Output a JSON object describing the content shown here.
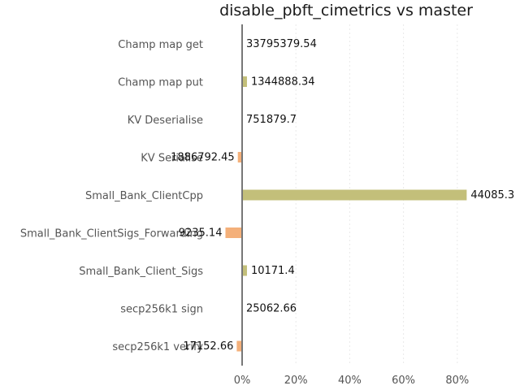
{
  "chart_data": {
    "type": "bar",
    "orientation": "horizontal",
    "title": "disable_pbft_cimetrics vs master",
    "xlabel": "",
    "ylabel": "",
    "xlim": [
      -0.1,
      1.0
    ],
    "xticks": [
      {
        "value": 0.0,
        "label": "0%"
      },
      {
        "value": 0.2,
        "label": "20%"
      },
      {
        "value": 0.4,
        "label": "40%"
      },
      {
        "value": 0.6,
        "label": "60%"
      },
      {
        "value": 0.8,
        "label": "80%"
      }
    ],
    "grid": true,
    "colors": {
      "positive": "#c3bf7a",
      "negative": "#f4b07a"
    },
    "categories": [
      "Champ map get",
      "Champ map put",
      "KV Deserialise",
      "KV Serialise",
      "Small_Bank_ClientCpp",
      "Small_Bank_ClientSigs_Forwarding",
      "Small_Bank_Client_Sigs",
      "secp256k1 sign",
      "secp256k1 verify"
    ],
    "values": [
      0.0,
      0.018,
      0.0,
      -0.016,
      0.835,
      -0.062,
      0.018,
      0.0,
      -0.02
    ],
    "value_labels": [
      "33795379.54",
      "1344888.34",
      "751879.7",
      "1886792.45",
      "44085.3",
      "9235.14",
      "10171.4",
      "25062.66",
      "17152.66"
    ]
  }
}
